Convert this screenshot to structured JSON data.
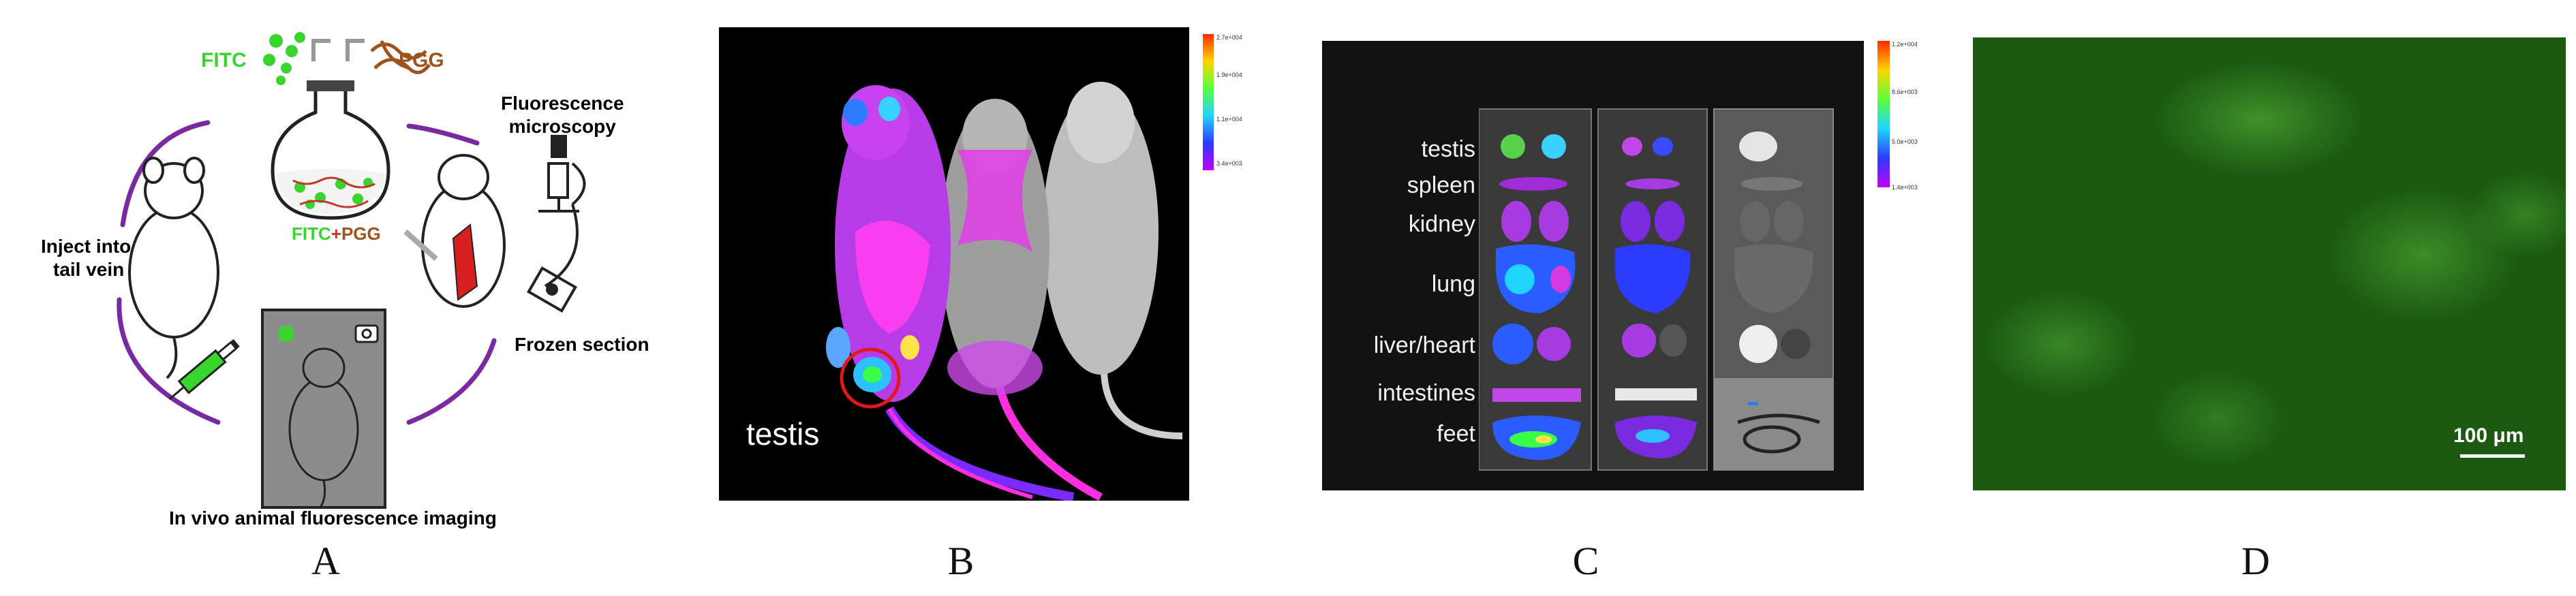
{
  "panels": [
    {
      "letter": "A"
    },
    {
      "letter": "B"
    },
    {
      "letter": "C"
    },
    {
      "letter": "D"
    }
  ],
  "panel_a": {
    "fitc": "FITC",
    "pgg": "PGG",
    "mix_fitc": "FITC",
    "mix_plus": "+",
    "mix_pgg": "PGG",
    "inject_line1": "Inject into",
    "inject_line2": "tail vein",
    "microscopy_line1": "Fluorescence",
    "microscopy_line2": "microscopy",
    "frozen": "Frozen section",
    "imaging": "In vivo animal fluorescence imaging"
  },
  "panel_b": {
    "label": "testis",
    "colorbar_ticks": [
      "2.7e+004",
      "1.9e+004",
      "1.1e+004",
      "3.4e+003"
    ]
  },
  "panel_c": {
    "organs": [
      "testis",
      "spleen",
      "kidney",
      "lung",
      "liver/heart",
      "intestines",
      "feet"
    ],
    "colorbar_ticks": [
      "1.2e+004",
      "8.6e+003",
      "5.0e+003",
      "1.4e+003"
    ]
  },
  "panel_d": {
    "scale_bar": "100 μm"
  },
  "colors": {
    "fitc_green": "#39d42e",
    "pgg_brown": "#a0521c",
    "cycle_purple": "#7a2aa0",
    "dark_bg": "#000000",
    "micro_green": "#1c5a12"
  }
}
